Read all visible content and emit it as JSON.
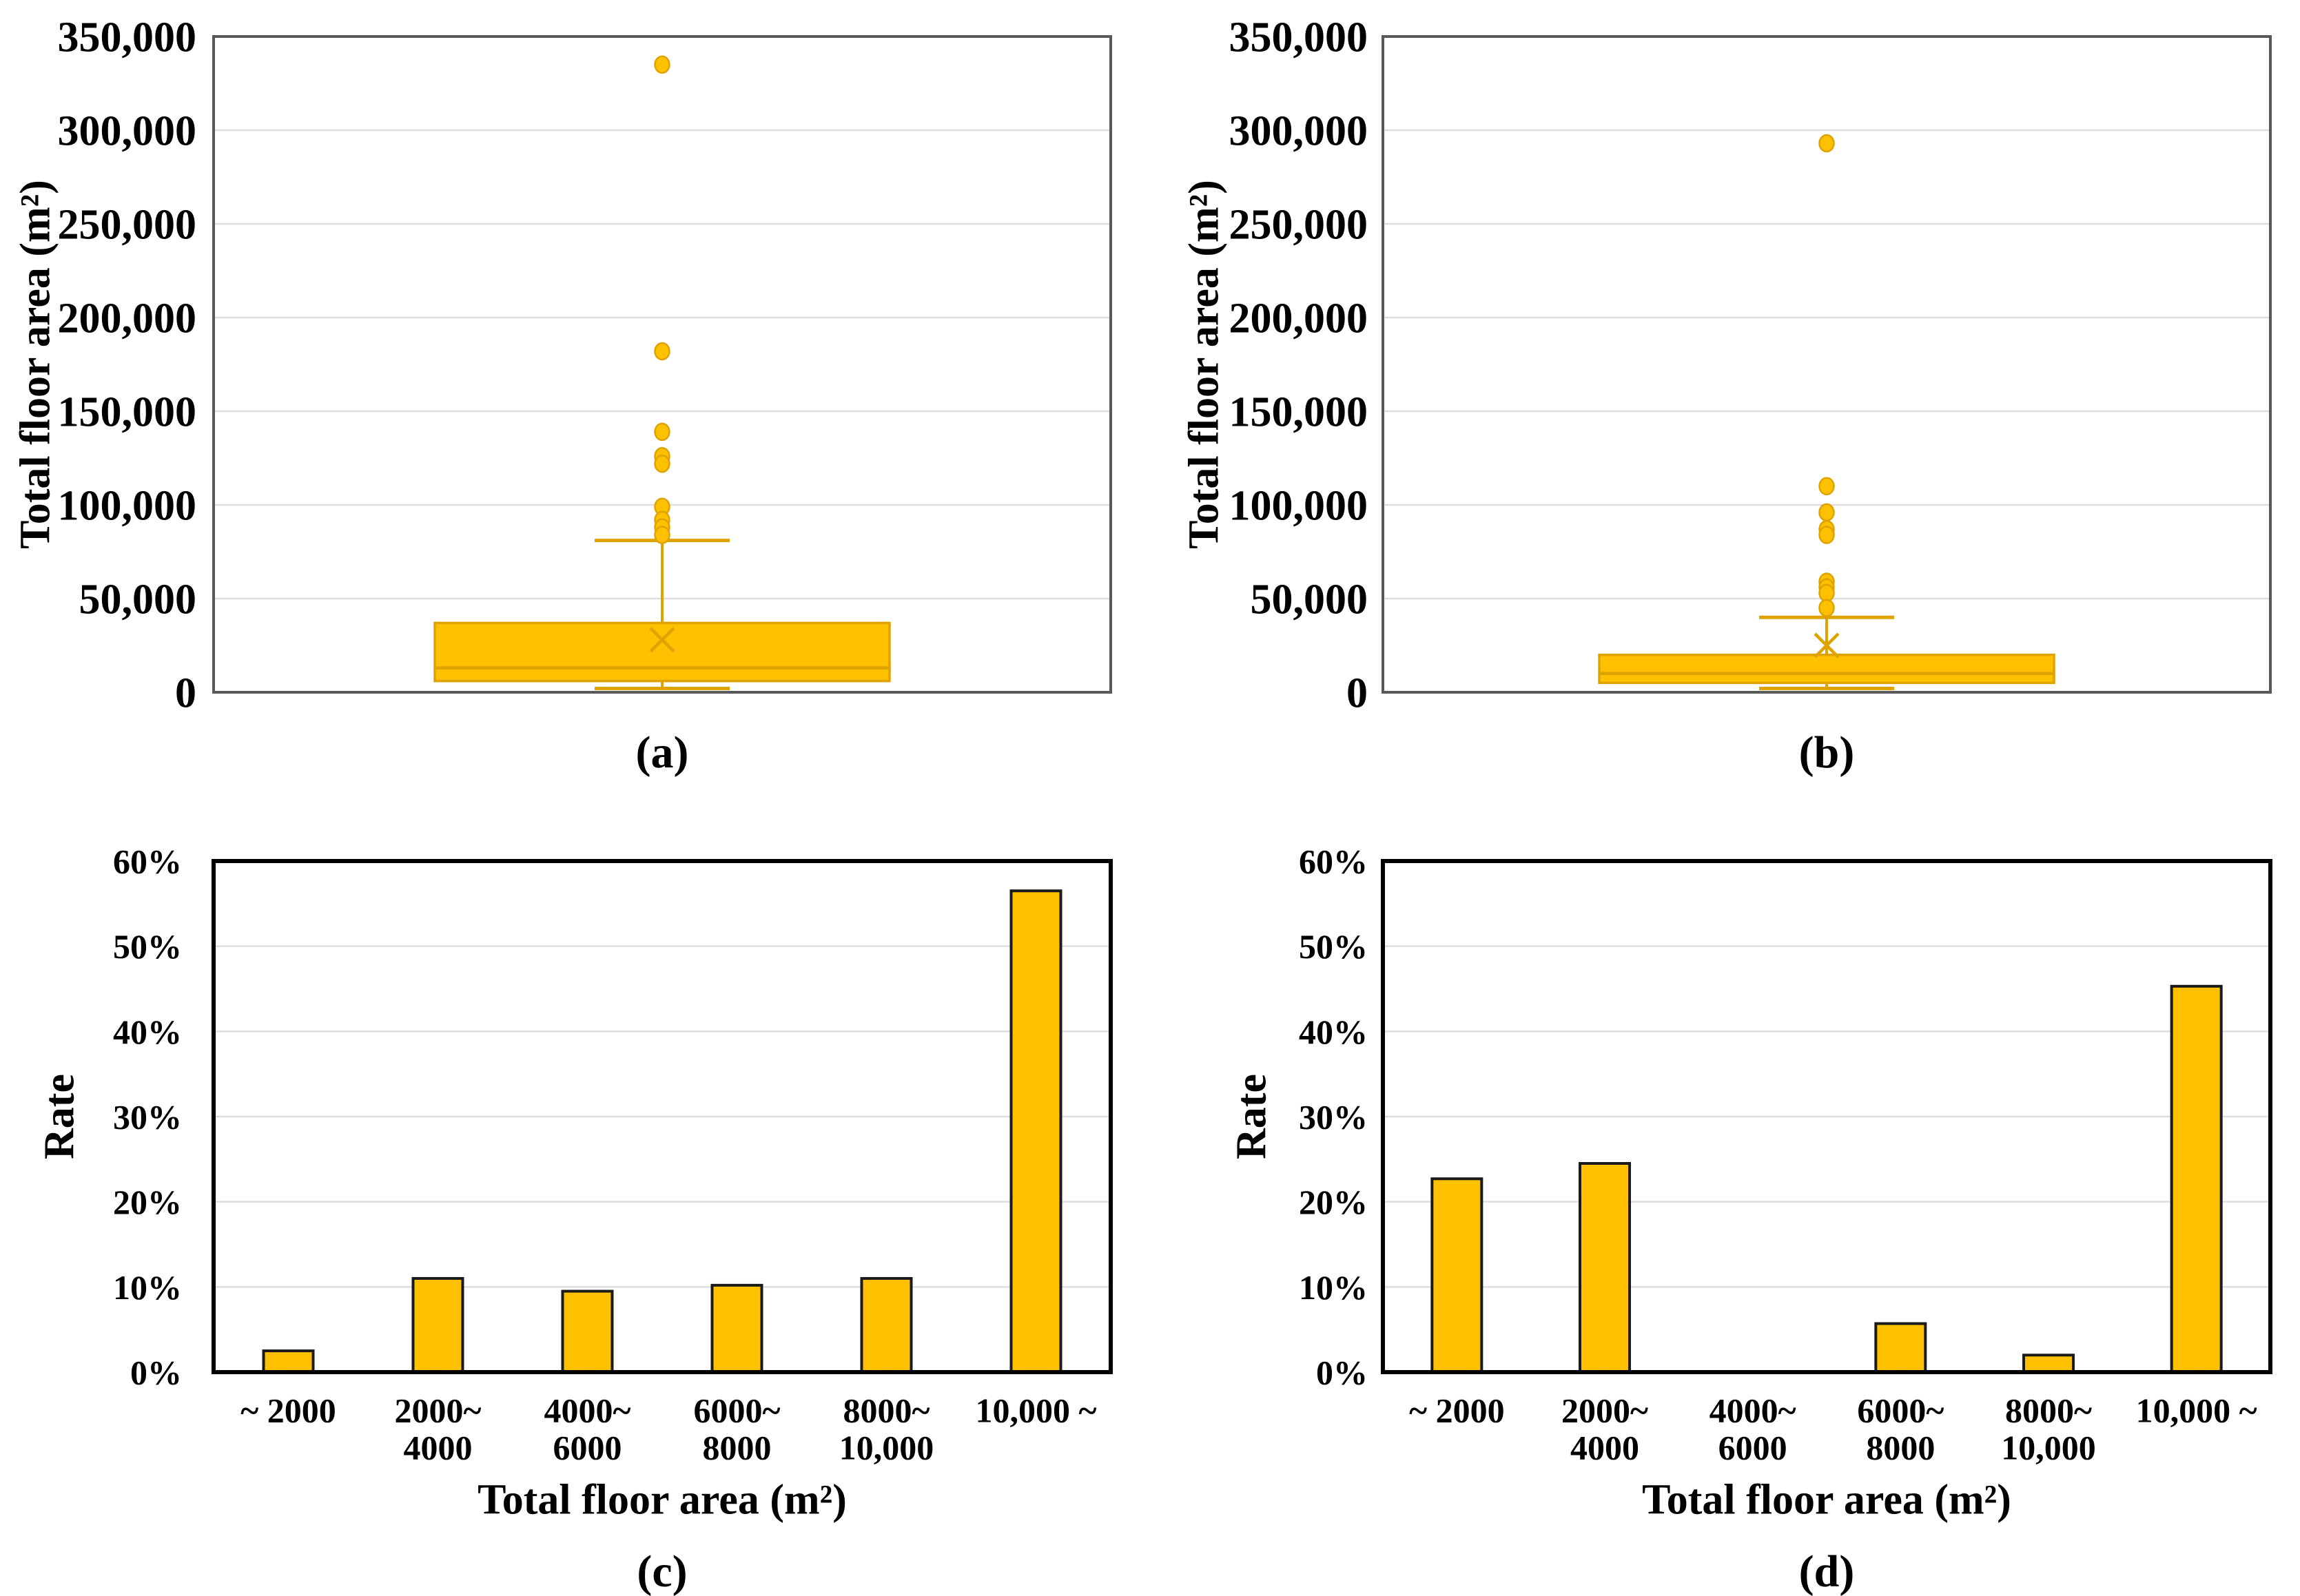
{
  "figure": {
    "background": "#FFFFFF",
    "accent_gold": "#FFC000",
    "gold_line": "#DFA300",
    "bar_border": "#1A1A1A",
    "grid_color": "#DEDEDE",
    "box_chart_border": "#595959",
    "bar_chart_border": "#000000"
  },
  "chart_data": [
    {
      "id": "a",
      "type": "box",
      "panel_label": "(a)",
      "ylabel": "Total floor area (m²)",
      "ylim": [
        0,
        350000
      ],
      "grid": true,
      "legend": "none",
      "ytick_values": [
        0,
        50000,
        100000,
        150000,
        200000,
        250000,
        300000,
        350000
      ],
      "ytick_labels": [
        "0",
        "50,000",
        "100,000",
        "150,000",
        "200,000",
        "250,000",
        "300,000",
        "350,000"
      ],
      "box": {
        "whisker_low": 2000,
        "q1": 6000,
        "median": 13000,
        "q3": 37000,
        "whisker_high": 81000,
        "mean": 28000
      },
      "outliers": [
        335000,
        182000,
        139000,
        126000,
        122000,
        99000,
        92000,
        88000,
        84000
      ]
    },
    {
      "id": "b",
      "type": "box",
      "panel_label": "(b)",
      "ylabel": "Total floor area (m²)",
      "ylim": [
        0,
        350000
      ],
      "grid": true,
      "legend": "none",
      "ytick_values": [
        0,
        50000,
        100000,
        150000,
        200000,
        250000,
        300000,
        350000
      ],
      "ytick_labels": [
        "0",
        "50,000",
        "100,000",
        "150,000",
        "200,000",
        "250,000",
        "300,000",
        "350,000"
      ],
      "box": {
        "whisker_low": 2000,
        "q1": 5000,
        "median": 10000,
        "q3": 20000,
        "whisker_high": 40000,
        "mean": 25000
      },
      "outliers": [
        293000,
        110000,
        96000,
        87000,
        84000,
        59000,
        56000,
        53000,
        45000
      ]
    },
    {
      "id": "c",
      "type": "bar",
      "panel_label": "(c)",
      "ylabel": "Rate",
      "xlabel": "Total floor area (m²)",
      "ylim": [
        0,
        60
      ],
      "grid": true,
      "legend": "none",
      "ytick_values": [
        0,
        10,
        20,
        30,
        40,
        50,
        60
      ],
      "ytick_labels": [
        "0%",
        "10%",
        "20%",
        "30%",
        "40%",
        "50%",
        "60%"
      ],
      "categories": [
        [
          "~ 2000"
        ],
        [
          "2000~",
          "4000"
        ],
        [
          "4000~",
          "6000"
        ],
        [
          "6000~",
          "8000"
        ],
        [
          "8000~",
          "10,000"
        ],
        [
          "10,000 ~"
        ]
      ],
      "values": [
        2.5,
        11,
        9.5,
        10.2,
        11,
        56.5
      ]
    },
    {
      "id": "d",
      "type": "bar",
      "panel_label": "(d)",
      "ylabel": "Rate",
      "xlabel": "Total floor area (m²)",
      "ylim": [
        0,
        60
      ],
      "grid": true,
      "legend": "none",
      "ytick_values": [
        0,
        10,
        20,
        30,
        40,
        50,
        60
      ],
      "ytick_labels": [
        "0%",
        "10%",
        "20%",
        "30%",
        "40%",
        "50%",
        "60%"
      ],
      "categories": [
        [
          "~ 2000"
        ],
        [
          "2000~",
          "4000"
        ],
        [
          "4000~",
          "6000"
        ],
        [
          "6000~",
          "8000"
        ],
        [
          "8000~",
          "10,000"
        ],
        [
          "10,000 ~"
        ]
      ],
      "values": [
        22.7,
        24.5,
        0,
        5.7,
        2.0,
        45.3
      ]
    }
  ]
}
